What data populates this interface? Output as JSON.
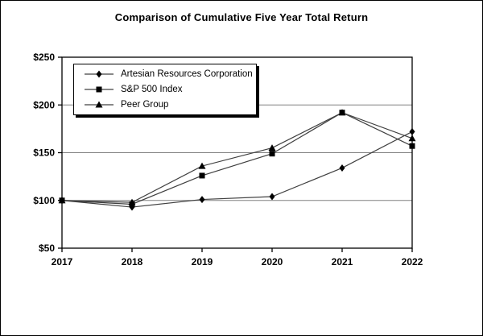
{
  "title": "Comparison of Cumulative Five Year Total Return",
  "colors": {
    "background": "#ffffff",
    "line": "#404040",
    "marker": "#000000",
    "grid": "#808080",
    "axis": "#000000",
    "legend_shadow": "#000000"
  },
  "chart_data": {
    "type": "line",
    "title": "Comparison of Cumulative Five Year Total Return",
    "x": [
      2017,
      2018,
      2019,
      2020,
      2021,
      2022
    ],
    "x_tick_labels": [
      "2017",
      "2018",
      "2019",
      "2020",
      "2021",
      "2022"
    ],
    "y_ticks": [
      50,
      100,
      150,
      200,
      250
    ],
    "y_tick_labels": [
      "$50",
      "$100",
      "$150",
      "$200",
      "$250"
    ],
    "ylim": [
      50,
      250
    ],
    "grid": "horizontal",
    "legend_position": "top-left-inside",
    "series": [
      {
        "name": "Artesian Resources Corporation",
        "marker": "diamond",
        "values": [
          100,
          93,
          101,
          104,
          134,
          172
        ]
      },
      {
        "name": "S&P 500 Index",
        "marker": "square",
        "values": [
          100,
          96,
          126,
          149,
          192,
          157
        ]
      },
      {
        "name": "Peer Group",
        "marker": "triangle",
        "values": [
          100,
          98,
          136,
          155,
          192,
          165
        ]
      }
    ]
  }
}
